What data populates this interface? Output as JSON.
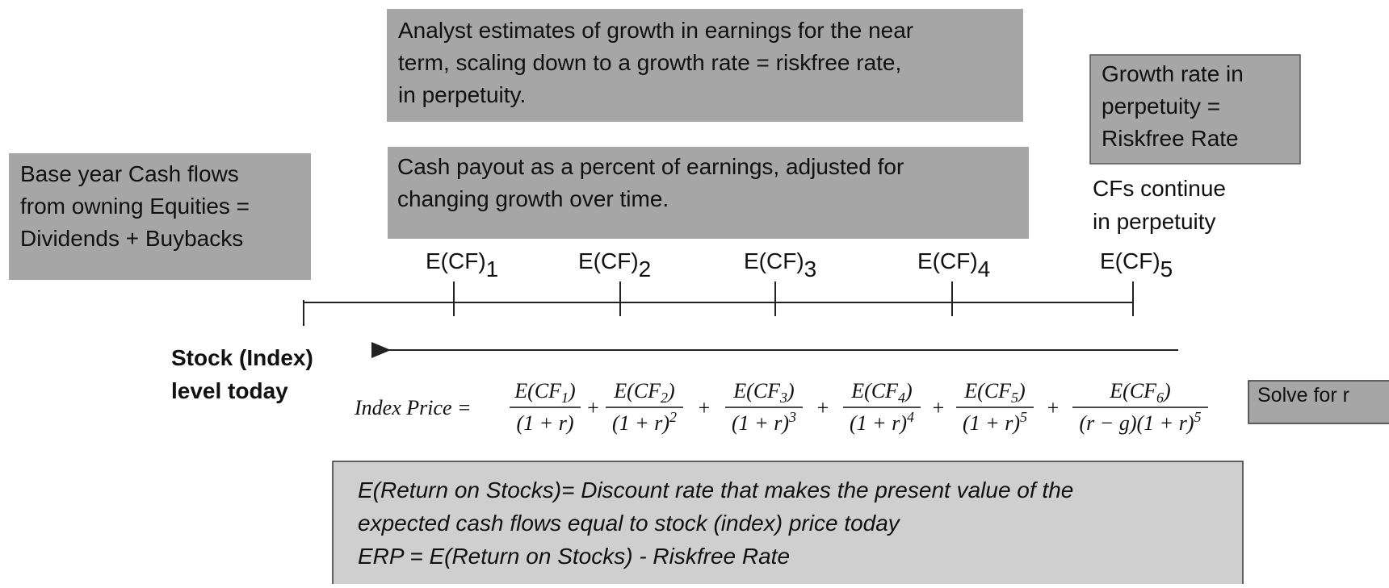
{
  "boxes": {
    "analyst": [
      "Analyst estimates of growth in earnings for the near",
      "term, scaling down to a growth rate = riskfree rate,",
      "in perpetuity."
    ],
    "payout": [
      "Cash payout as a percent of earnings, adjusted for",
      "changing growth over time."
    ],
    "growth": [
      "Growth rate in",
      "perpetuity =",
      "Riskfree Rate"
    ],
    "base": [
      "Base year Cash flows",
      "from owning Equities =",
      "Dividends + Buybacks"
    ],
    "solve": "Solve for r",
    "bottom": [
      "E(Return on Stocks)= Discount rate that makes the present value of the",
      "expected cash flows equal to stock (index) price today",
      "ERP = E(Return on Stocks) - Riskfree Rate"
    ]
  },
  "continue_note": [
    "CFs continue",
    "in perpetuity"
  ],
  "stock_label": [
    "Stock (Index)",
    "level today"
  ],
  "timeline": [
    {
      "base": "E(CF)",
      "sub": "1"
    },
    {
      "base": "E(CF)",
      "sub": "2"
    },
    {
      "base": "E(CF)",
      "sub": "3"
    },
    {
      "base": "E(CF)",
      "sub": "4"
    },
    {
      "base": "E(CF)",
      "sub": "5"
    }
  ],
  "formula": {
    "lhs": "Index Price =",
    "operator": "+",
    "terms": [
      {
        "num": {
          "text": "E(CF",
          "sub": "1",
          "close": ")"
        },
        "den": {
          "text": "(1 + r)"
        }
      },
      {
        "num": {
          "text": "E(CF",
          "sub": "2",
          "close": ")"
        },
        "den": {
          "text": "(1 + r)",
          "exp": "2"
        }
      },
      {
        "num": {
          "text": "E(CF",
          "sub": "3",
          "close": ")"
        },
        "den": {
          "text": "(1 + r)",
          "exp": "3"
        }
      },
      {
        "num": {
          "text": "E(CF",
          "sub": "4",
          "close": ")"
        },
        "den": {
          "text": "(1 + r)",
          "exp": "4"
        }
      },
      {
        "num": {
          "text": "E(CF",
          "sub": "5",
          "close": ")"
        },
        "den": {
          "text": "(1 + r)",
          "exp": "5"
        }
      },
      {
        "num": {
          "text": "E(CF",
          "sub": "6",
          "close": ")"
        },
        "den": {
          "text": "(r − g)(1 + r)",
          "exp": "5"
        }
      }
    ]
  }
}
